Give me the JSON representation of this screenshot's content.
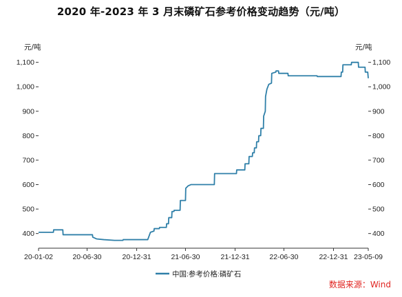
{
  "title": "2020 年-2023 年 3 月末磷矿石参考价格变动趋势（元/吨）",
  "source": "数据来源：Wind",
  "chart_data": {
    "type": "line",
    "unit_left": "元/吨",
    "unit_right": "元/吨",
    "y_ticks": [
      "400",
      "500",
      "600",
      "700",
      "800",
      "900",
      "1,000",
      "1,100"
    ],
    "y_tick_values": [
      400,
      500,
      600,
      700,
      800,
      900,
      1000,
      1100
    ],
    "ylim": [
      340,
      1130
    ],
    "x_ticks": [
      "20-01-02",
      "20-06-30",
      "20-12-31",
      "21-06-30",
      "21-12-31",
      "22-06-30",
      "22-12-31",
      "23-05-09"
    ],
    "x_tick_dates": [
      "2020-01-02",
      "2020-06-30",
      "2020-12-31",
      "2021-06-30",
      "2021-12-31",
      "2022-06-30",
      "2022-12-31",
      "2023-05-09"
    ],
    "xlim": [
      "2020-01-02",
      "2023-05-09"
    ],
    "legend_position": "bottom",
    "grid": false,
    "line_color": "#2e7fa8",
    "series": [
      {
        "name": "中国:参考价格:磷矿石",
        "points": [
          [
            "2020-01-02",
            405
          ],
          [
            "2020-02-26",
            405
          ],
          [
            "2020-02-27",
            415
          ],
          [
            "2020-04-01",
            415
          ],
          [
            "2020-04-02",
            395
          ],
          [
            "2020-07-20",
            395
          ],
          [
            "2020-07-21",
            385
          ],
          [
            "2020-08-04",
            378
          ],
          [
            "2020-08-31",
            375
          ],
          [
            "2020-10-10",
            372
          ],
          [
            "2020-11-10",
            372
          ],
          [
            "2020-11-11",
            375
          ],
          [
            "2021-01-20",
            375
          ],
          [
            "2021-02-10",
            375
          ],
          [
            "2021-02-20",
            405
          ],
          [
            "2021-03-05",
            410
          ],
          [
            "2021-03-06",
            420
          ],
          [
            "2021-03-25",
            420
          ],
          [
            "2021-03-26",
            425
          ],
          [
            "2021-04-20",
            425
          ],
          [
            "2021-04-21",
            440
          ],
          [
            "2021-04-28",
            440
          ],
          [
            "2021-04-29",
            465
          ],
          [
            "2021-05-10",
            465
          ],
          [
            "2021-05-11",
            490
          ],
          [
            "2021-05-18",
            490
          ],
          [
            "2021-05-19",
            495
          ],
          [
            "2021-06-10",
            495
          ],
          [
            "2021-06-11",
            535
          ],
          [
            "2021-06-30",
            535
          ],
          [
            "2021-07-01",
            585
          ],
          [
            "2021-07-10",
            595
          ],
          [
            "2021-07-20",
            600
          ],
          [
            "2021-10-15",
            600
          ],
          [
            "2021-10-16",
            645
          ],
          [
            "2022-01-05",
            645
          ],
          [
            "2022-01-06",
            660
          ],
          [
            "2022-02-05",
            660
          ],
          [
            "2022-02-06",
            685
          ],
          [
            "2022-02-20",
            685
          ],
          [
            "2022-02-21",
            715
          ],
          [
            "2022-03-05",
            715
          ],
          [
            "2022-03-06",
            730
          ],
          [
            "2022-03-12",
            730
          ],
          [
            "2022-03-13",
            750
          ],
          [
            "2022-03-20",
            750
          ],
          [
            "2022-03-21",
            775
          ],
          [
            "2022-03-28",
            775
          ],
          [
            "2022-03-29",
            800
          ],
          [
            "2022-04-05",
            800
          ],
          [
            "2022-04-06",
            830
          ],
          [
            "2022-04-15",
            830
          ],
          [
            "2022-04-16",
            880
          ],
          [
            "2022-04-22",
            900
          ],
          [
            "2022-04-23",
            960
          ],
          [
            "2022-04-28",
            990
          ],
          [
            "2022-05-05",
            1010
          ],
          [
            "2022-05-15",
            1015
          ],
          [
            "2022-05-16",
            1055
          ],
          [
            "2022-05-31",
            1060
          ],
          [
            "2022-06-01",
            1065
          ],
          [
            "2022-06-10",
            1065
          ],
          [
            "2022-06-11",
            1055
          ],
          [
            "2022-07-15",
            1055
          ],
          [
            "2022-07-16",
            1045
          ],
          [
            "2022-10-31",
            1045
          ],
          [
            "2022-11-01",
            1042
          ],
          [
            "2023-01-28",
            1042
          ],
          [
            "2023-01-29",
            1060
          ],
          [
            "2023-02-03",
            1060
          ],
          [
            "2023-02-04",
            1090
          ],
          [
            "2023-03-07",
            1090
          ],
          [
            "2023-03-08",
            1100
          ],
          [
            "2023-04-02",
            1100
          ],
          [
            "2023-04-03",
            1080
          ],
          [
            "2023-04-27",
            1080
          ],
          [
            "2023-04-28",
            1060
          ],
          [
            "2023-05-07",
            1060
          ],
          [
            "2023-05-09",
            1035
          ]
        ]
      }
    ]
  }
}
